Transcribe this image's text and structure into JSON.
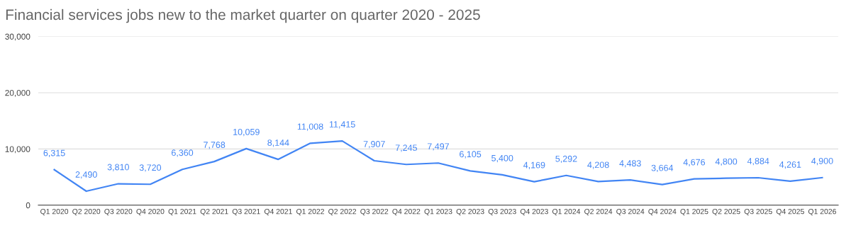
{
  "chart_data": {
    "type": "line",
    "title": "Financial services jobs new to the market quarter on quarter 2020 - 2025",
    "categories": [
      "Q1 2020",
      "Q2 2020",
      "Q3 2020",
      "Q4 2020",
      "Q1 2021",
      "Q2 2021",
      "Q3 2021",
      "Q4 2021",
      "Q1 2022",
      "Q2 2022",
      "Q3 2022",
      "Q4 2022",
      "Q1 2023",
      "Q2 2023",
      "Q3 2023",
      "Q4 2023",
      "Q1 2024",
      "Q2 2024",
      "Q3 2024",
      "Q4 2024",
      "Q1 2025",
      "Q2 2025",
      "Q3 2025",
      "Q4 2025",
      "Q1 2026"
    ],
    "series": [
      {
        "color": "#4285f4",
        "values": [
          6315,
          2490,
          3810,
          3720,
          6360,
          7768,
          10059,
          8144,
          11008,
          11415,
          7907,
          7245,
          7497,
          6105,
          5400,
          4169,
          5292,
          4208,
          4483,
          3664,
          4676,
          4800,
          4884,
          4261,
          4900
        ],
        "value_labels": [
          "6,315",
          "2,490",
          "3,810",
          "3,720",
          "6,360",
          "7,768",
          "10,059",
          "8,144",
          "11,008",
          "11,415",
          "7,907",
          "7,245",
          "7,497",
          "6,105",
          "5,400",
          "4,169",
          "5,292",
          "4,208",
          "4,483",
          "3,664",
          "4,676",
          "4,800",
          "4,884",
          "4,261",
          "4,900"
        ]
      }
    ],
    "ylim": [
      0,
      30000
    ],
    "yticks": [
      0,
      {
        "value": 10000,
        "label": "10,000"
      },
      {
        "value": 20000,
        "label": "20,000"
      },
      {
        "value": 30000,
        "label": "30,000"
      }
    ],
    "grid": "y",
    "legend": false
  }
}
